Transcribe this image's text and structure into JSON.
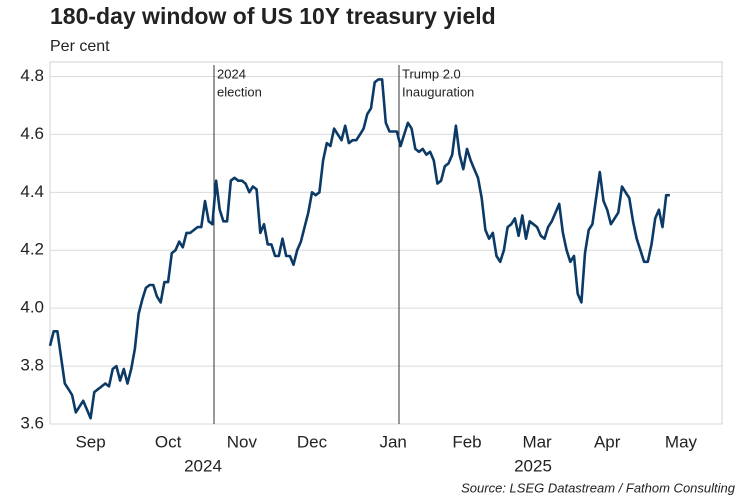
{
  "chart_data": {
    "type": "line",
    "title": "180-day window of US 10Y treasury yield",
    "subtitle": "Per cent",
    "source": "Source: LSEG Datastream / Fathom Consulting",
    "years": [
      "2024",
      "2025"
    ],
    "annotations": [
      {
        "lines": [
          "2024",
          "election"
        ]
      },
      {
        "lines": [
          "Trump 2.0",
          "Inauguration"
        ]
      }
    ],
    "categories": [
      null,
      null,
      null,
      null,
      null,
      null,
      null,
      null,
      null,
      null,
      null,
      "Sep",
      null,
      null,
      null,
      null,
      null,
      null,
      null,
      null,
      null,
      null,
      null,
      null,
      null,
      null,
      null,
      null,
      null,
      null,
      null,
      null,
      "Oct",
      null,
      null,
      null,
      null,
      null,
      null,
      null,
      null,
      null,
      null,
      null,
      null,
      null,
      null,
      null,
      null,
      null,
      null,
      null,
      "Nov",
      null,
      null,
      null,
      null,
      null,
      null,
      null,
      null,
      null,
      null,
      null,
      null,
      null,
      null,
      null,
      null,
      null,
      null,
      "Dec",
      null,
      null,
      null,
      null,
      null,
      null,
      null,
      null,
      null,
      null,
      null,
      null,
      null,
      null,
      null,
      null,
      null,
      null,
      null,
      null,
      null,
      "Jan",
      null,
      null,
      null,
      null,
      null,
      null,
      null,
      null,
      null,
      null,
      null,
      null,
      null,
      null,
      null,
      null,
      null,
      null,
      null,
      "Feb",
      null,
      null,
      null,
      null,
      null,
      null,
      null,
      null,
      null,
      null,
      null,
      null,
      null,
      null,
      null,
      null,
      null,
      null,
      "Mar",
      null,
      null,
      null,
      null,
      null,
      null,
      null,
      null,
      null,
      null,
      null,
      null,
      null,
      null,
      null,
      null,
      null,
      null,
      "Apr",
      null,
      null,
      null,
      null,
      null,
      null,
      null,
      null,
      null,
      null,
      null,
      null,
      null,
      null,
      null,
      null,
      null,
      null,
      null,
      "May",
      null
    ],
    "series": [
      {
        "name": "US 10Y treasury yield",
        "color": "#0b3a66",
        "values": [
          3.87,
          3.92,
          3.92,
          3.83,
          3.74,
          3.72,
          3.7,
          3.64,
          3.66,
          3.68,
          3.65,
          3.62,
          3.71,
          3.72,
          3.73,
          3.74,
          3.73,
          3.79,
          3.8,
          3.75,
          3.79,
          3.74,
          3.79,
          3.86,
          3.98,
          4.03,
          4.07,
          4.08,
          4.08,
          4.04,
          4.02,
          4.09,
          4.09,
          4.19,
          4.2,
          4.23,
          4.21,
          4.26,
          4.26,
          4.27,
          4.28,
          4.28,
          4.37,
          4.3,
          4.29,
          4.44,
          4.34,
          4.3,
          4.3,
          4.44,
          4.45,
          4.44,
          4.44,
          4.43,
          4.4,
          4.42,
          4.41,
          4.26,
          4.29,
          4.22,
          4.22,
          4.18,
          4.18,
          4.24,
          4.18,
          4.18,
          4.15,
          4.2,
          4.23,
          4.28,
          4.33,
          4.4,
          4.39,
          4.4,
          4.51,
          4.57,
          4.56,
          4.62,
          4.6,
          4.58,
          4.63,
          4.57,
          4.58,
          4.58,
          4.6,
          4.62,
          4.67,
          4.69,
          4.78,
          4.79,
          4.79,
          4.64,
          4.61,
          4.61,
          4.61,
          4.56,
          4.6,
          4.64,
          4.62,
          4.55,
          4.54,
          4.55,
          4.53,
          4.54,
          4.51,
          4.43,
          4.44,
          4.49,
          4.5,
          4.53,
          4.63,
          4.53,
          4.48,
          4.55,
          4.51,
          4.48,
          4.45,
          4.38,
          4.27,
          4.24,
          4.26,
          4.18,
          4.16,
          4.2,
          4.28,
          4.29,
          4.31,
          4.25,
          4.32,
          4.24,
          4.3,
          4.29,
          4.28,
          4.25,
          4.24,
          4.28,
          4.3,
          4.33,
          4.36,
          4.26,
          4.2,
          4.16,
          4.18,
          4.05,
          4.02,
          4.19,
          4.27,
          4.29,
          4.38,
          4.47,
          4.37,
          4.34,
          4.29,
          4.31,
          4.33,
          4.42,
          4.4,
          4.38,
          4.3,
          4.24,
          4.2,
          4.16,
          4.16,
          4.22,
          4.31,
          4.34,
          4.28,
          4.39,
          4.39,
          null,
          null,
          null,
          null
        ]
      }
    ],
    "ylim": [
      3.6,
      4.85
    ],
    "yticks": [
      3.6,
      3.8,
      {
        "value": 4,
        "label": "4.0"
      },
      4.2,
      4.4,
      4.6,
      4.8
    ],
    "grid": true
  }
}
